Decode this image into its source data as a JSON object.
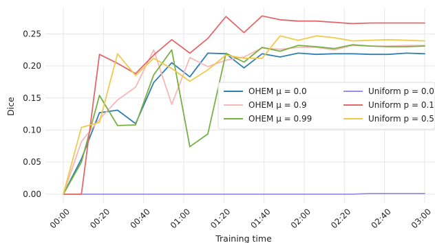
{
  "chart_data": {
    "type": "line",
    "title": "",
    "xlabel": "Training time",
    "ylabel": "Dice",
    "x": [
      "00:00",
      "00:09",
      "00:18",
      "00:27",
      "00:36",
      "00:45",
      "00:54",
      "01:03",
      "01:12",
      "01:21",
      "01:30",
      "01:39",
      "01:48",
      "01:57",
      "02:06",
      "02:15",
      "02:24",
      "02:33",
      "02:42",
      "02:51",
      "03:00"
    ],
    "x_ticks": [
      "00:00",
      "00:20",
      "00:40",
      "01:00",
      "01:20",
      "01:40",
      "02:00",
      "02:20",
      "02:40",
      "03:00"
    ],
    "ylim": [
      -0.013,
      0.29
    ],
    "y_ticks": [
      "0.00",
      "0.05",
      "0.10",
      "0.15",
      "0.20",
      "0.25"
    ],
    "grid": true,
    "legend_position": "center-right",
    "series": [
      {
        "name": "OHEM μ = 0.0",
        "color": "#2e7eb3",
        "values": [
          0.0,
          0.055,
          0.127,
          0.131,
          0.11,
          0.174,
          0.205,
          0.183,
          0.22,
          0.219,
          0.197,
          0.219,
          0.214,
          0.22,
          0.218,
          0.219,
          0.219,
          0.218,
          0.218,
          0.22,
          0.219
        ]
      },
      {
        "name": "OHEM μ = 0.9",
        "color": "#f8b7b7",
        "values": [
          0.0,
          0.082,
          0.117,
          0.147,
          0.167,
          0.225,
          0.14,
          0.213,
          0.199,
          0.209,
          0.214,
          0.228,
          0.226,
          0.229,
          0.229,
          0.225,
          0.232,
          0.231,
          0.231,
          0.232,
          0.232
        ]
      },
      {
        "name": "OHEM μ = 0.99",
        "color": "#76b043",
        "values": [
          0.0,
          0.05,
          0.154,
          0.107,
          0.108,
          0.186,
          0.225,
          0.074,
          0.094,
          0.22,
          0.206,
          0.229,
          0.223,
          0.232,
          0.23,
          0.227,
          0.233,
          0.231,
          0.23,
          0.23,
          0.231
        ]
      },
      {
        "name": "Uniform p = 0.0",
        "color": "#9b8ce6",
        "values": [
          0.0,
          0.0,
          0.0,
          0.0,
          0.0,
          0.0,
          0.0,
          0.0,
          0.0,
          0.0,
          0.0,
          0.0,
          0.0,
          0.0,
          0.0,
          0.0,
          0.0,
          0.001,
          0.001,
          0.001,
          0.001
        ]
      },
      {
        "name": "Uniform p = 0.1",
        "color": "#e3676a",
        "values": [
          0.0,
          0.0,
          0.218,
          0.204,
          0.188,
          0.217,
          0.241,
          0.22,
          0.243,
          0.277,
          0.252,
          0.278,
          0.272,
          0.27,
          0.27,
          0.268,
          0.266,
          0.267,
          0.267,
          0.267,
          0.267
        ]
      },
      {
        "name": "Uniform p = 0.5",
        "color": "#efc94c",
        "values": [
          0.0,
          0.104,
          0.112,
          0.219,
          0.185,
          0.212,
          0.196,
          0.176,
          0.194,
          0.217,
          0.212,
          0.212,
          0.247,
          0.24,
          0.247,
          0.244,
          0.239,
          0.24,
          0.241,
          0.24,
          0.239
        ]
      }
    ]
  }
}
